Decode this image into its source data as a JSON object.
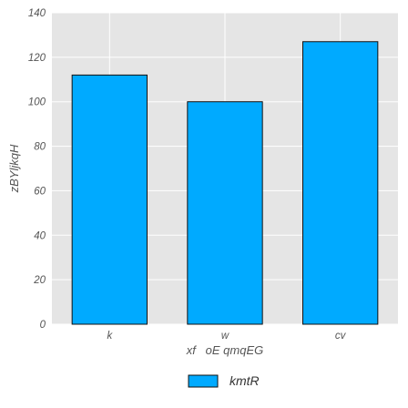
{
  "chart_data": {
    "type": "bar",
    "categories": [
      "k",
      "w",
      "cv"
    ],
    "series": [
      {
        "name": "kmtR",
        "values": [
          112,
          100,
          127
        ]
      }
    ],
    "title": "",
    "xlabel": "xf   oE qmqEG",
    "ylabel": "zBYljkqH",
    "ylim": [
      0,
      140
    ],
    "yticks": [
      0,
      20,
      40,
      60,
      80,
      100,
      120,
      140
    ],
    "grid": true,
    "legend_position": "bottom-center",
    "colors": {
      "bar": "#00aaff",
      "bar_edge": "#111111",
      "plot_background": "#e5e5e5",
      "grid": "#ffffff"
    }
  }
}
